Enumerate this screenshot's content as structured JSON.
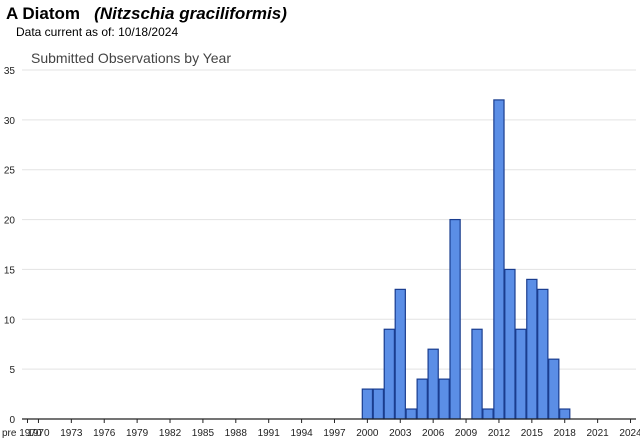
{
  "header": {
    "common_name": "A Diatom",
    "scientific_name": "(Nitzschia graciliformis)",
    "data_current_label": "Data current as of:",
    "data_current_date": "10/18/2024"
  },
  "colors": {
    "bar_fill": "#5b8ee6",
    "bar_stroke": "#1a3d8f",
    "grid": "#e3e3e3",
    "axis": "#222222"
  },
  "chart_data": {
    "type": "bar",
    "title": "Submitted Observations by Year",
    "xlabel": "",
    "ylabel": "",
    "ylim": [
      0,
      35
    ],
    "yticks": [
      0,
      5,
      10,
      15,
      20,
      25,
      30,
      35
    ],
    "grid": true,
    "legend": "none",
    "categories": [
      "pre 1970",
      "1970",
      "1971",
      "1972",
      "1973",
      "1974",
      "1975",
      "1976",
      "1977",
      "1978",
      "1979",
      "1980",
      "1981",
      "1982",
      "1983",
      "1984",
      "1985",
      "1986",
      "1987",
      "1988",
      "1989",
      "1990",
      "1991",
      "1992",
      "1993",
      "1994",
      "1995",
      "1996",
      "1997",
      "1998",
      "1999",
      "2000",
      "2001",
      "2002",
      "2003",
      "2004",
      "2005",
      "2006",
      "2007",
      "2008",
      "2009",
      "2010",
      "2011",
      "2012",
      "2013",
      "2014",
      "2015",
      "2016",
      "2017",
      "2018",
      "2019",
      "2020",
      "2021",
      "2022",
      "2023",
      "2024"
    ],
    "x_tick_labels": [
      "pre 1970",
      "1970",
      "1973",
      "1976",
      "1979",
      "1982",
      "1985",
      "1988",
      "1991",
      "1994",
      "1997",
      "2000",
      "2003",
      "2006",
      "2009",
      "2012",
      "2015",
      "2018",
      "2021",
      "2024"
    ],
    "values": [
      0,
      0,
      0,
      0,
      0,
      0,
      0,
      0,
      0,
      0,
      0,
      0,
      0,
      0,
      0,
      0,
      0,
      0,
      0,
      0,
      0,
      0,
      0,
      0,
      0,
      0,
      0,
      0,
      0,
      0,
      0,
      3,
      3,
      9,
      13,
      1,
      4,
      7,
      4,
      20,
      0,
      9,
      1,
      32,
      15,
      9,
      14,
      13,
      6,
      1,
      0,
      0,
      0,
      0,
      0,
      0
    ]
  }
}
